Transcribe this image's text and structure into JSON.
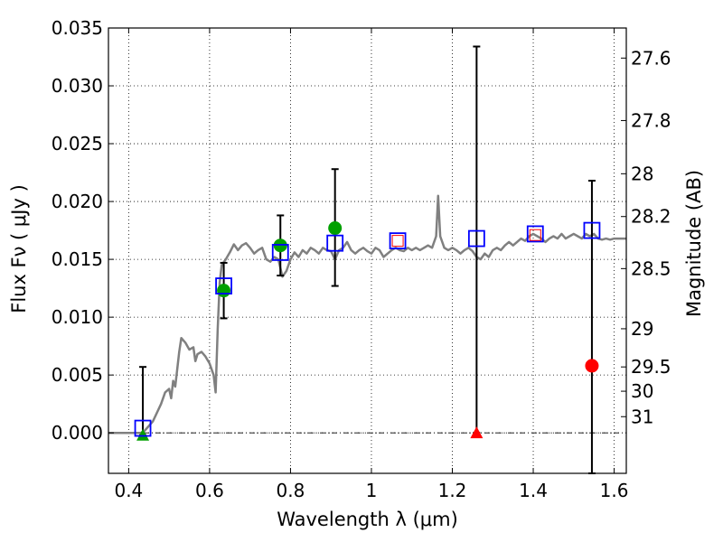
{
  "chart_data": {
    "type": "scatter",
    "xlabel": "Wavelength  λ (μm)",
    "ylabel": "Flux  Fν  ( μJy )",
    "y2label": "Magnitude (AB)",
    "xlim": [
      0.35,
      1.63
    ],
    "ylim": [
      -0.0035,
      0.035
    ],
    "grid": true,
    "x_ticks": [
      0.4,
      0.6,
      0.8,
      1.0,
      1.2,
      1.4,
      1.6
    ],
    "x_tick_labels": [
      "0.4",
      "0.6",
      "0.8",
      "1",
      "1.2",
      "1.4",
      "1.6"
    ],
    "y_ticks": [
      0.0,
      0.005,
      0.01,
      0.015,
      0.02,
      0.025,
      0.03,
      0.035
    ],
    "y_tick_labels": [
      "0.000",
      "0.005",
      "0.010",
      "0.015",
      "0.020",
      "0.025",
      "0.030",
      "0.035"
    ],
    "mag_ticks": [
      {
        "label": "27.6",
        "flux": 0.0324
      },
      {
        "label": "27.8",
        "flux": 0.027
      },
      {
        "label": "28",
        "flux": 0.0224
      },
      {
        "label": "28.2",
        "flux": 0.0187
      },
      {
        "label": "28.5",
        "flux": 0.0142
      },
      {
        "label": "29",
        "flux": 0.009
      },
      {
        "label": "29.5",
        "flux": 0.0057
      },
      {
        "label": "30",
        "flux": 0.0036
      },
      {
        "label": "31",
        "flux": 0.0014
      }
    ],
    "series": [
      {
        "kind": "line",
        "color": "#808080",
        "points": [
          [
            0.35,
            0.0
          ],
          [
            0.43,
            0.0
          ],
          [
            0.44,
            0.0002
          ],
          [
            0.46,
            0.001
          ],
          [
            0.48,
            0.0025
          ],
          [
            0.49,
            0.0035
          ],
          [
            0.5,
            0.0038
          ],
          [
            0.505,
            0.003
          ],
          [
            0.51,
            0.0045
          ],
          [
            0.515,
            0.004
          ],
          [
            0.52,
            0.0055
          ],
          [
            0.525,
            0.007
          ],
          [
            0.53,
            0.0082
          ],
          [
            0.54,
            0.0078
          ],
          [
            0.55,
            0.0072
          ],
          [
            0.56,
            0.0074
          ],
          [
            0.565,
            0.0062
          ],
          [
            0.57,
            0.0068
          ],
          [
            0.58,
            0.007
          ],
          [
            0.59,
            0.0066
          ],
          [
            0.6,
            0.006
          ],
          [
            0.61,
            0.005
          ],
          [
            0.615,
            0.0035
          ],
          [
            0.62,
            0.009
          ],
          [
            0.625,
            0.013
          ],
          [
            0.63,
            0.0145
          ],
          [
            0.64,
            0.015
          ],
          [
            0.65,
            0.0156
          ],
          [
            0.66,
            0.0163
          ],
          [
            0.67,
            0.0158
          ],
          [
            0.68,
            0.0162
          ],
          [
            0.69,
            0.0164
          ],
          [
            0.7,
            0.016
          ],
          [
            0.71,
            0.0155
          ],
          [
            0.72,
            0.0158
          ],
          [
            0.73,
            0.016
          ],
          [
            0.74,
            0.015
          ],
          [
            0.75,
            0.0148
          ],
          [
            0.76,
            0.0152
          ],
          [
            0.77,
            0.015
          ],
          [
            0.78,
            0.0135
          ],
          [
            0.79,
            0.014
          ],
          [
            0.8,
            0.015
          ],
          [
            0.81,
            0.0156
          ],
          [
            0.82,
            0.0152
          ],
          [
            0.83,
            0.0158
          ],
          [
            0.84,
            0.0155
          ],
          [
            0.85,
            0.016
          ],
          [
            0.86,
            0.0158
          ],
          [
            0.87,
            0.0155
          ],
          [
            0.88,
            0.016
          ],
          [
            0.89,
            0.0158
          ],
          [
            0.9,
            0.0157
          ],
          [
            0.91,
            0.015
          ],
          [
            0.92,
            0.0158
          ],
          [
            0.93,
            0.016
          ],
          [
            0.94,
            0.0165
          ],
          [
            0.95,
            0.0158
          ],
          [
            0.96,
            0.0155
          ],
          [
            0.97,
            0.0158
          ],
          [
            0.98,
            0.016
          ],
          [
            0.99,
            0.0157
          ],
          [
            1.0,
            0.0155
          ],
          [
            1.01,
            0.016
          ],
          [
            1.02,
            0.0158
          ],
          [
            1.03,
            0.0152
          ],
          [
            1.04,
            0.0155
          ],
          [
            1.05,
            0.0158
          ],
          [
            1.06,
            0.016
          ],
          [
            1.07,
            0.0158
          ],
          [
            1.08,
            0.0157
          ],
          [
            1.09,
            0.016
          ],
          [
            1.1,
            0.0158
          ],
          [
            1.11,
            0.016
          ],
          [
            1.12,
            0.0158
          ],
          [
            1.13,
            0.016
          ],
          [
            1.14,
            0.0162
          ],
          [
            1.15,
            0.016
          ],
          [
            1.16,
            0.017
          ],
          [
            1.165,
            0.0205
          ],
          [
            1.17,
            0.017
          ],
          [
            1.18,
            0.016
          ],
          [
            1.19,
            0.0158
          ],
          [
            1.2,
            0.016
          ],
          [
            1.21,
            0.0158
          ],
          [
            1.22,
            0.0155
          ],
          [
            1.23,
            0.0158
          ],
          [
            1.24,
            0.016
          ],
          [
            1.25,
            0.0157
          ],
          [
            1.26,
            0.0152
          ],
          [
            1.27,
            0.015
          ],
          [
            1.28,
            0.0155
          ],
          [
            1.29,
            0.0152
          ],
          [
            1.3,
            0.0158
          ],
          [
            1.31,
            0.016
          ],
          [
            1.32,
            0.0158
          ],
          [
            1.33,
            0.0162
          ],
          [
            1.34,
            0.0165
          ],
          [
            1.35,
            0.0162
          ],
          [
            1.36,
            0.0165
          ],
          [
            1.37,
            0.0168
          ],
          [
            1.38,
            0.0166
          ],
          [
            1.39,
            0.017
          ],
          [
            1.4,
            0.0172
          ],
          [
            1.41,
            0.017
          ],
          [
            1.42,
            0.0168
          ],
          [
            1.43,
            0.0165
          ],
          [
            1.44,
            0.0168
          ],
          [
            1.45,
            0.017
          ],
          [
            1.46,
            0.0168
          ],
          [
            1.47,
            0.0172
          ],
          [
            1.48,
            0.0168
          ],
          [
            1.49,
            0.017
          ],
          [
            1.5,
            0.0172
          ],
          [
            1.51,
            0.017
          ],
          [
            1.52,
            0.0168
          ],
          [
            1.53,
            0.0172
          ],
          [
            1.54,
            0.017
          ],
          [
            1.55,
            0.0172
          ],
          [
            1.56,
            0.0168
          ],
          [
            1.57,
            0.0167
          ],
          [
            1.58,
            0.0168
          ],
          [
            1.59,
            0.0167
          ],
          [
            1.6,
            0.0168
          ],
          [
            1.61,
            0.0168
          ],
          [
            1.63,
            0.0168
          ]
        ]
      },
      {
        "kind": "blue-squares",
        "color": "#0000ff",
        "points": [
          [
            0.435,
            0.0004
          ],
          [
            0.635,
            0.0127
          ],
          [
            0.775,
            0.0156
          ],
          [
            0.91,
            0.0164
          ],
          [
            1.065,
            0.0166
          ],
          [
            1.26,
            0.0168
          ],
          [
            1.405,
            0.0172
          ],
          [
            1.545,
            0.0175
          ]
        ]
      },
      {
        "kind": "red-small-squares",
        "color": "#ff0000",
        "points": [
          [
            1.065,
            0.0166
          ],
          [
            1.405,
            0.0171
          ]
        ]
      },
      {
        "kind": "green-circles",
        "color": "#00a000",
        "points": [
          [
            0.635,
            0.0123
          ],
          [
            0.775,
            0.0162
          ],
          [
            0.91,
            0.0177
          ]
        ]
      },
      {
        "kind": "green-triangles",
        "color": "#00a000",
        "points": [
          [
            0.435,
            -0.0002
          ]
        ]
      },
      {
        "kind": "red-circles",
        "color": "#ff0000",
        "points": [
          [
            1.545,
            0.0058
          ]
        ]
      },
      {
        "kind": "red-triangles",
        "color": "#ff0000",
        "points": [
          [
            1.26,
            0.0
          ]
        ]
      },
      {
        "kind": "error-bars",
        "color": "#000000",
        "bars": [
          {
            "x": 0.435,
            "low": -0.0002,
            "high": 0.0057
          },
          {
            "x": 0.635,
            "low": 0.0099,
            "high": 0.0147
          },
          {
            "x": 0.775,
            "low": 0.0136,
            "high": 0.0188
          },
          {
            "x": 0.91,
            "low": 0.0127,
            "high": 0.0228
          },
          {
            "x": 1.26,
            "low": 0.0,
            "high": 0.0334
          },
          {
            "x": 1.545,
            "low": -0.0035,
            "high": 0.0218
          }
        ]
      }
    ]
  }
}
